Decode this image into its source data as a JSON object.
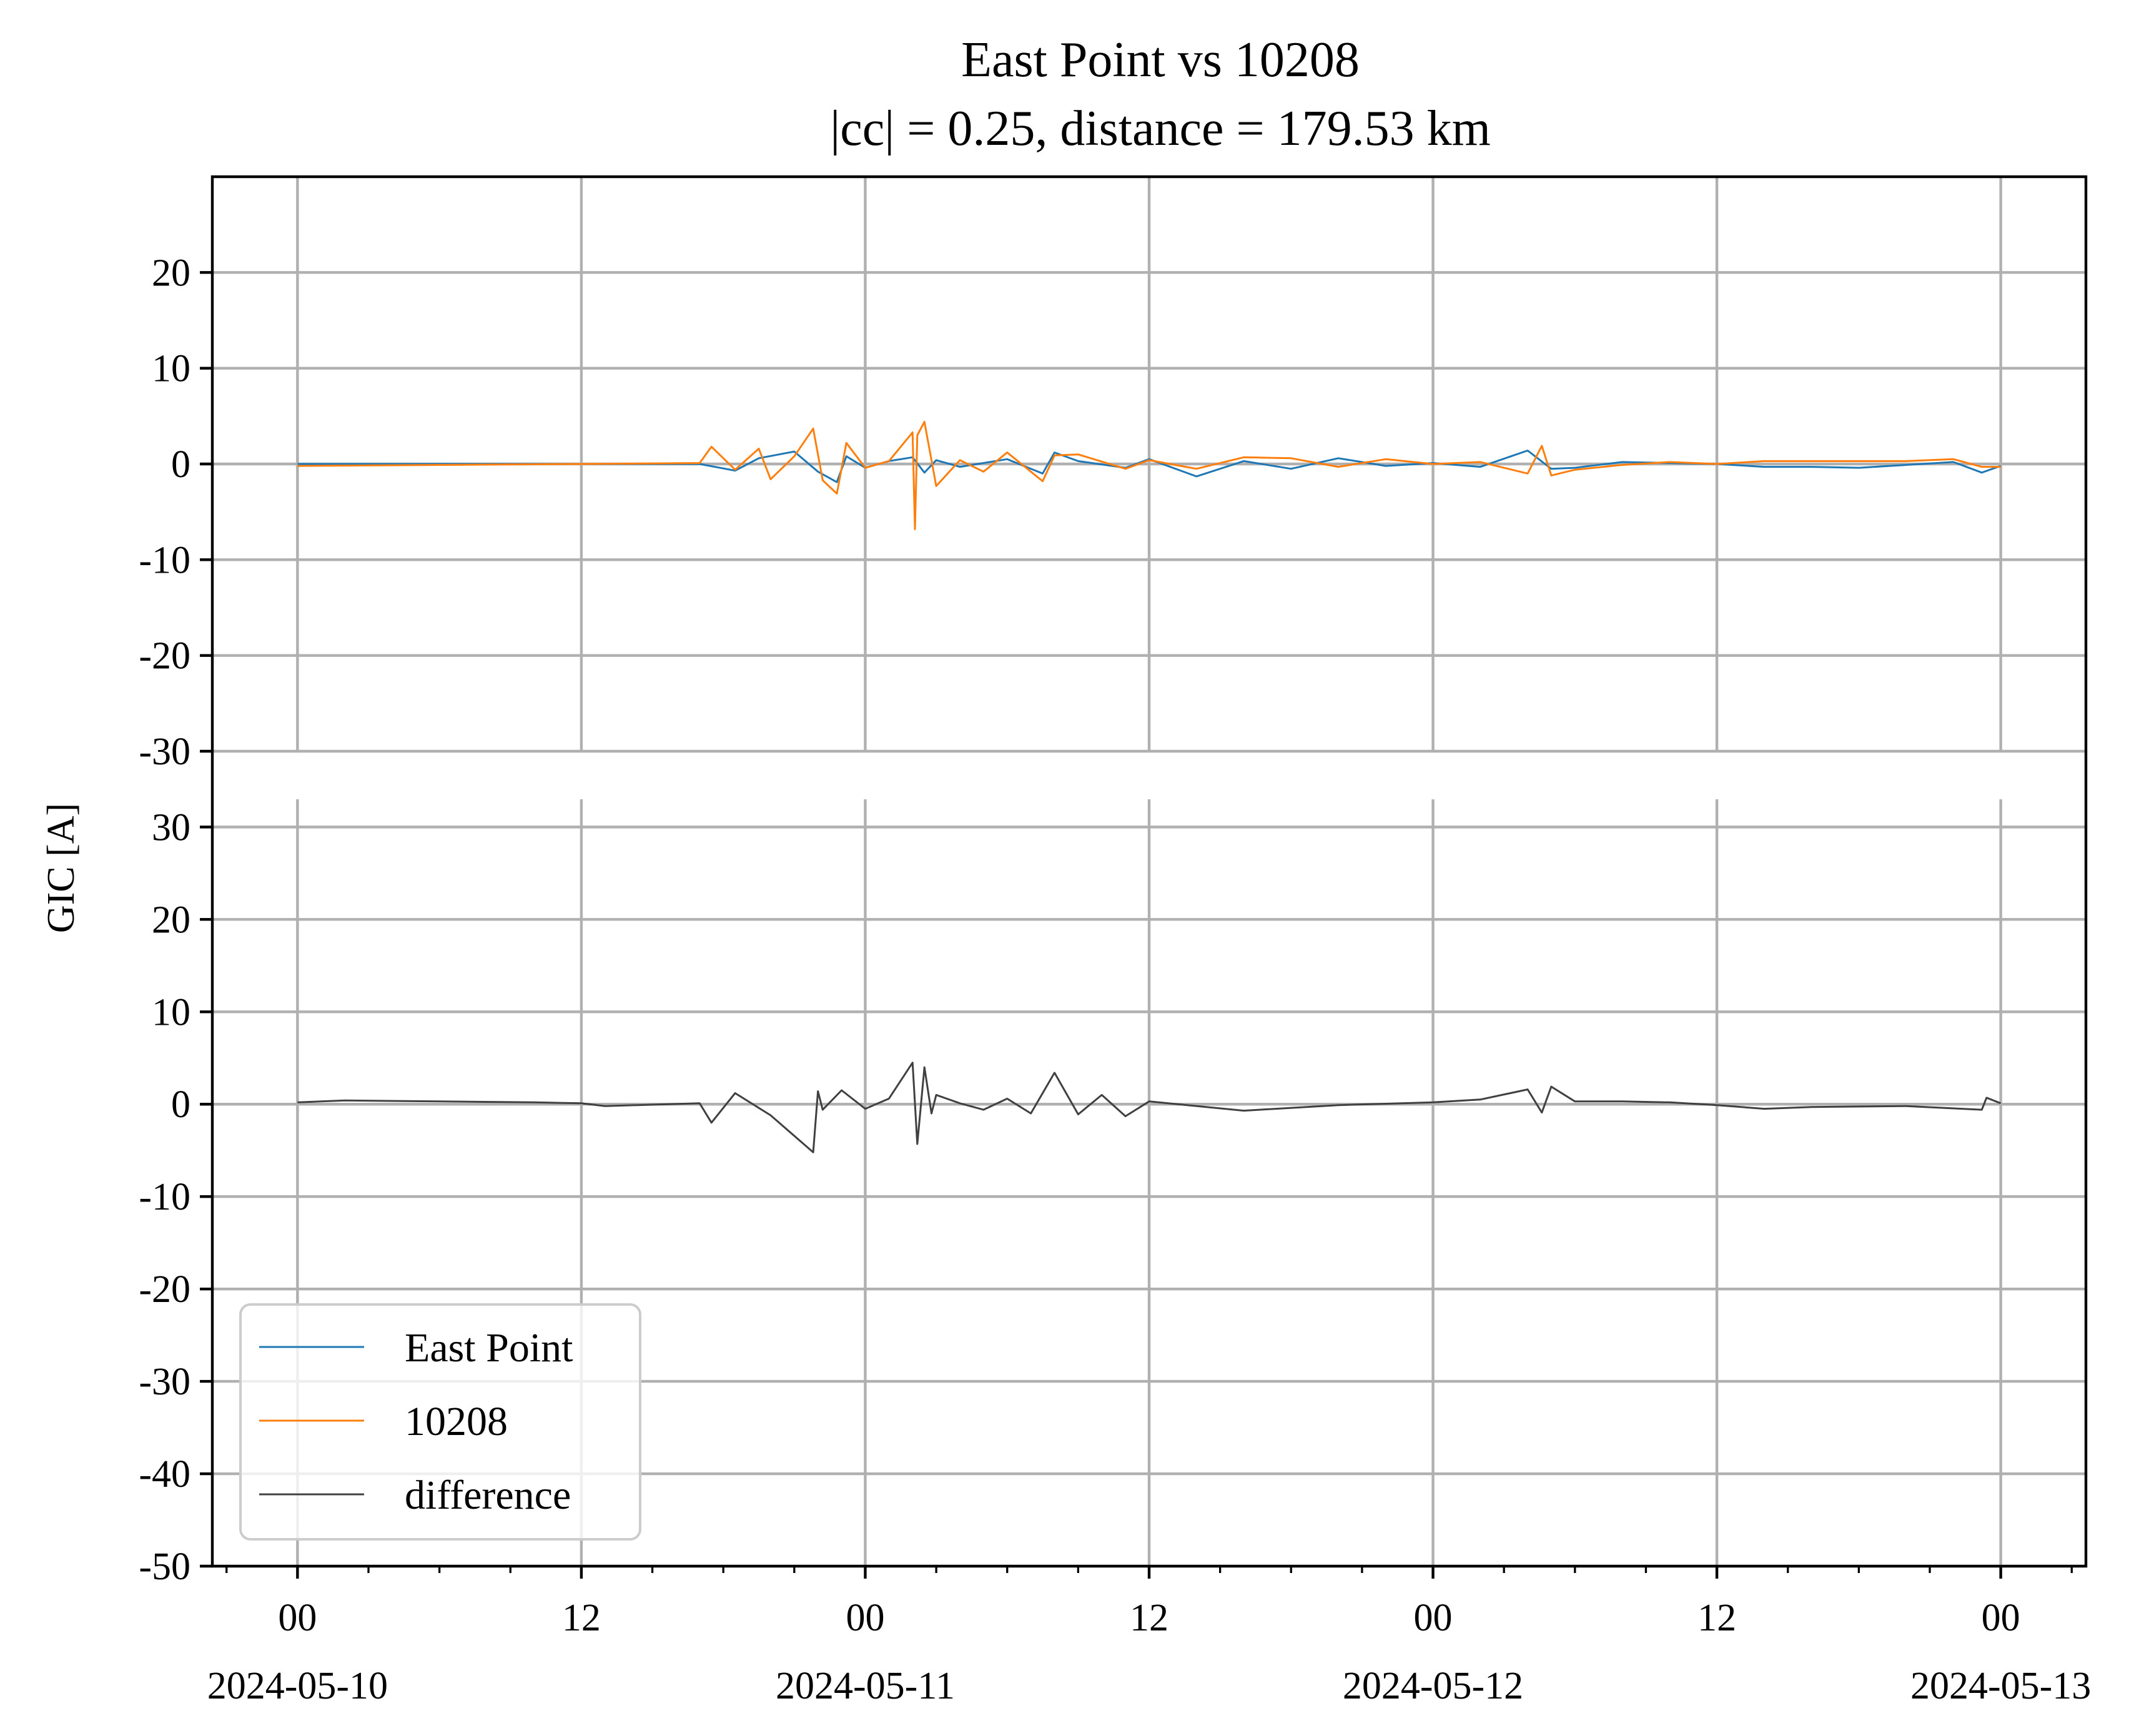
{
  "chart_data": {
    "type": "line",
    "title": "East Point vs 10208",
    "subtitle": "|cc| = 0.25, distance = 179.53 km",
    "ylabel": "GIC [A]",
    "xlabel": "",
    "grid": true,
    "legend_placement": "lower-left",
    "colors": {
      "East Point": "#1f77b4",
      "10208": "#ff7f0e",
      "difference": "#404040"
    },
    "x_ticks": [
      {
        "hour": 0,
        "label": "00",
        "date": "2024-05-10"
      },
      {
        "hour": 12,
        "label": "12",
        "date": ""
      },
      {
        "hour": 24,
        "label": "00",
        "date": "2024-05-11"
      },
      {
        "hour": 36,
        "label": "12",
        "date": ""
      },
      {
        "hour": 48,
        "label": "00",
        "date": "2024-05-12"
      },
      {
        "hour": 60,
        "label": "12",
        "date": ""
      },
      {
        "hour": 72,
        "label": "00",
        "date": "2024-05-13"
      }
    ],
    "xlim_hours": [
      -3.6,
      75.6
    ],
    "panels": [
      {
        "name": "top",
        "ylim": [
          -30,
          30
        ],
        "yticks": [
          20,
          10,
          0,
          -10,
          -20,
          -30
        ],
        "ytick_labels": [
          "20",
          "10",
          "0",
          "-10",
          "-20",
          "-30"
        ],
        "series": [
          {
            "name": "East Point",
            "x": [
              0,
              12,
              17,
              18.5,
              19.5,
              21,
              22,
              22.8,
              23.2,
              24,
              25,
              26,
              26.5,
              27,
              28,
              30,
              31.5,
              32,
              33,
              35,
              36,
              38,
              40,
              42,
              44,
              46,
              48,
              50,
              52,
              53,
              54,
              56,
              58,
              60,
              62,
              64,
              66,
              68,
              70,
              71.2,
              72
            ],
            "y": [
              0,
              0,
              0,
              -0.7,
              0.6,
              1.3,
              -0.8,
              -1.9,
              0.8,
              -0.4,
              0.3,
              0.7,
              -0.9,
              0.4,
              -0.3,
              0.5,
              -1.0,
              1.2,
              0.3,
              -0.4,
              0.5,
              -1.3,
              0.3,
              -0.5,
              0.6,
              -0.2,
              0.1,
              -0.3,
              1.4,
              -0.5,
              -0.4,
              0.2,
              0.1,
              0,
              -0.3,
              -0.3,
              -0.4,
              -0.1,
              0.2,
              -0.9,
              -0.2
            ]
          },
          {
            "name": "10208",
            "x": [
              0,
              12,
              17,
              17.5,
              18.5,
              19.5,
              20,
              21,
              21.8,
              22.2,
              22.8,
              23.2,
              24,
              25,
              26,
              26.1,
              26.2,
              26.5,
              27,
              28,
              29,
              30,
              31.5,
              32,
              33,
              35,
              36,
              38,
              40,
              42,
              44,
              46,
              48,
              50,
              52,
              52.6,
              53,
              54,
              56,
              58,
              60,
              62,
              64,
              66,
              68,
              70,
              71.2,
              72
            ],
            "y": [
              -0.2,
              0,
              0.1,
              1.8,
              -0.6,
              1.6,
              -1.6,
              0.8,
              3.7,
              -1.7,
              -3.1,
              2.2,
              -0.4,
              0.3,
              3.3,
              -6.8,
              3.0,
              4.4,
              -2.3,
              0.4,
              -0.8,
              1.2,
              -1.8,
              0.9,
              1.0,
              -0.5,
              0.4,
              -0.5,
              0.7,
              0.6,
              -0.3,
              0.5,
              0,
              0.2,
              -1.0,
              1.9,
              -1.2,
              -0.6,
              -0.1,
              0.2,
              0,
              0.3,
              0.3,
              0.3,
              0.3,
              0.5,
              -0.3,
              -0.3
            ]
          }
        ]
      },
      {
        "name": "bottom",
        "ylim": [
          -50,
          33
        ],
        "yticks": [
          30,
          20,
          10,
          0,
          -10,
          -20,
          -30,
          -40,
          -50
        ],
        "ytick_labels": [
          "30",
          "20",
          "10",
          "0",
          "-10",
          "-20",
          "-30",
          "-40",
          "-50"
        ],
        "series": [
          {
            "name": "difference",
            "x": [
              0,
              2,
              6,
              10,
              12,
              13,
              17,
              17.5,
              18.5,
              20,
              21.8,
              22,
              22.2,
              23,
              24,
              25,
              26,
              26.2,
              26.5,
              26.8,
              27,
              28,
              29,
              30,
              31,
              32,
              33,
              34,
              35,
              36,
              40,
              44,
              48,
              50,
              52,
              52.6,
              53,
              54,
              56,
              58,
              60,
              62,
              64,
              68,
              71.2,
              71.4,
              72
            ],
            "y": [
              0.2,
              0.4,
              0.3,
              0.2,
              0.1,
              -0.2,
              0.1,
              -2.0,
              1.2,
              -1.2,
              -5.2,
              1.4,
              -0.6,
              1.5,
              -0.5,
              0.6,
              4.5,
              -4.3,
              4.0,
              -1.0,
              1.0,
              0.1,
              -0.6,
              0.6,
              -1.0,
              3.4,
              -1.1,
              1.0,
              -1.3,
              0.3,
              -0.7,
              -0.1,
              0.2,
              0.5,
              1.6,
              -0.9,
              1.9,
              0.3,
              0.3,
              0.2,
              -0.1,
              -0.5,
              -0.3,
              -0.2,
              -0.6,
              0.7,
              0.1
            ]
          }
        ]
      }
    ],
    "legend": [
      "East Point",
      "10208",
      "difference"
    ]
  }
}
